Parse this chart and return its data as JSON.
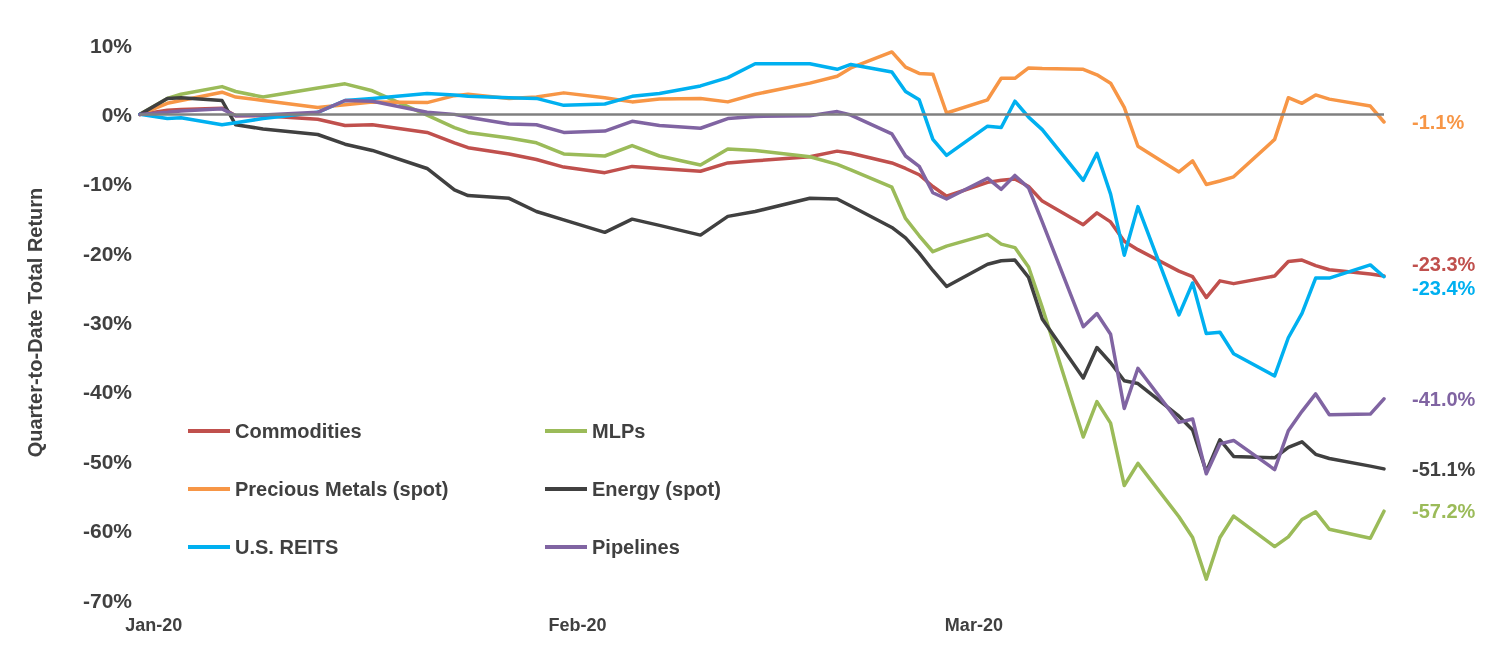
{
  "chart_data": {
    "type": "line",
    "ylabel": "Quarter-to-Date Total Return",
    "x": [
      "2019-12-31",
      "2020-01-02",
      "2020-01-03",
      "2020-01-06",
      "2020-01-07",
      "2020-01-09",
      "2020-01-13",
      "2020-01-15",
      "2020-01-17",
      "2020-01-21",
      "2020-01-23",
      "2020-01-24",
      "2020-01-27",
      "2020-01-29",
      "2020-01-31",
      "2020-02-03",
      "2020-02-05",
      "2020-02-07",
      "2020-02-10",
      "2020-02-12",
      "2020-02-14",
      "2020-02-18",
      "2020-02-20",
      "2020-02-21",
      "2020-02-24",
      "2020-02-25",
      "2020-02-26",
      "2020-02-27",
      "2020-02-28",
      "2020-03-02",
      "2020-03-03",
      "2020-03-04",
      "2020-03-05",
      "2020-03-06",
      "2020-03-09",
      "2020-03-10",
      "2020-03-11",
      "2020-03-12",
      "2020-03-13",
      "2020-03-16",
      "2020-03-17",
      "2020-03-18",
      "2020-03-19",
      "2020-03-20",
      "2020-03-23",
      "2020-03-24",
      "2020-03-25",
      "2020-03-26",
      "2020-03-27",
      "2020-03-30",
      "2020-03-31"
    ],
    "series": [
      {
        "name": "Commodities",
        "color": "#c0504d",
        "values": [
          0,
          0.6,
          0.7,
          0.9,
          -0.2,
          -0.2,
          -0.7,
          -1.6,
          -1.5,
          -2.6,
          -4.1,
          -4.8,
          -5.7,
          -6.5,
          -7.6,
          -8.4,
          -7.5,
          -7.8,
          -8.2,
          -7.0,
          -6.7,
          -6.1,
          -5.3,
          -5.6,
          -7.0,
          -7.8,
          -8.7,
          -10.4,
          -11.8,
          -9.8,
          -9.5,
          -9.3,
          -10.4,
          -12.5,
          -15.9,
          -14.2,
          -15.5,
          -18.3,
          -19.5,
          -22.6,
          -23.4,
          -26.4,
          -24.0,
          -24.4,
          -23.3,
          -21.2,
          -21.0,
          -21.8,
          -22.4,
          -23.0,
          -23.3
        ],
        "value_labels": [
          null,
          null,
          null,
          null,
          null,
          null,
          null,
          null,
          null,
          null,
          null,
          null,
          null,
          null,
          null,
          null,
          null,
          null,
          null,
          null,
          null,
          null,
          null,
          null,
          null,
          null,
          null,
          null,
          null,
          null,
          null,
          null,
          null,
          null,
          null,
          null,
          null,
          null,
          null,
          null,
          null,
          null,
          null,
          null,
          null,
          null,
          null,
          null,
          null,
          null,
          "-23.3%"
        ]
      },
      {
        "name": "MLPs",
        "color": "#9bbb59",
        "values": [
          0,
          2.3,
          2.9,
          4.0,
          3.3,
          2.5,
          3.8,
          4.4,
          3.4,
          -0.1,
          -1.9,
          -2.6,
          -3.4,
          -4.1,
          -5.7,
          -6.0,
          -4.5,
          -6.0,
          -7.3,
          -5.0,
          -5.2,
          -6.1,
          -7.2,
          -8.0,
          -10.5,
          -15.0,
          -17.5,
          -19.8,
          -19.0,
          -17.3,
          -18.7,
          -19.2,
          -22.0,
          -27.8,
          -46.5,
          -41.4,
          -44.5,
          -53.5,
          -50.3,
          -58.0,
          -61.0,
          -67.0,
          -61.0,
          -57.9,
          -62.3,
          -60.9,
          -58.4,
          -57.3,
          -59.8,
          -61.1,
          -57.2
        ],
        "value_labels": [
          null,
          null,
          null,
          null,
          null,
          null,
          null,
          null,
          null,
          null,
          null,
          null,
          null,
          null,
          null,
          null,
          null,
          null,
          null,
          null,
          null,
          null,
          null,
          null,
          null,
          null,
          null,
          null,
          null,
          null,
          null,
          null,
          null,
          null,
          null,
          null,
          null,
          null,
          null,
          null,
          null,
          null,
          null,
          null,
          null,
          null,
          null,
          null,
          null,
          null,
          "-57.2%"
        ]
      },
      {
        "name": "Precious Metals (spot)",
        "color": "#f79646",
        "values": [
          0,
          1.6,
          2.0,
          3.2,
          2.5,
          2.0,
          1.0,
          1.4,
          1.8,
          1.7,
          2.7,
          2.9,
          2.3,
          2.5,
          3.1,
          2.4,
          1.8,
          2.2,
          2.3,
          1.8,
          2.9,
          4.5,
          5.5,
          6.7,
          9.0,
          6.8,
          5.9,
          5.8,
          0.2,
          2.1,
          5.2,
          5.2,
          6.7,
          6.6,
          6.5,
          5.7,
          4.5,
          1.0,
          -4.6,
          -8.3,
          -6.7,
          -10.1,
          -9.6,
          -9.0,
          -3.6,
          2.4,
          1.6,
          2.8,
          2.2,
          1.2,
          -1.1
        ],
        "value_labels": [
          null,
          null,
          null,
          null,
          null,
          null,
          null,
          null,
          null,
          null,
          null,
          null,
          null,
          null,
          null,
          null,
          null,
          null,
          null,
          null,
          null,
          null,
          null,
          null,
          null,
          null,
          null,
          null,
          null,
          null,
          null,
          null,
          null,
          null,
          null,
          null,
          null,
          null,
          null,
          null,
          null,
          null,
          null,
          null,
          null,
          null,
          null,
          null,
          null,
          null,
          "-1.1%"
        ]
      },
      {
        "name": "Energy (spot)",
        "color": "#404040",
        "values": [
          0,
          2.3,
          2.4,
          2.0,
          -1.5,
          -2.1,
          -2.9,
          -4.3,
          -5.2,
          -7.8,
          -10.9,
          -11.7,
          -12.1,
          -14.0,
          -15.2,
          -17.0,
          -15.1,
          -16.0,
          -17.4,
          -14.7,
          -14.0,
          -12.1,
          -12.2,
          -13.2,
          -16.3,
          -17.8,
          -20.0,
          -22.5,
          -24.8,
          -21.6,
          -21.1,
          -21.0,
          -23.5,
          -29.5,
          -38.0,
          -33.6,
          -35.8,
          -38.4,
          -38.8,
          -43.5,
          -45.5,
          -51.5,
          -46.9,
          -49.3,
          -49.5,
          -48.0,
          -47.2,
          -49.0,
          -49.6,
          -50.7,
          -51.1
        ],
        "value_labels": [
          null,
          null,
          null,
          null,
          null,
          null,
          null,
          null,
          null,
          null,
          null,
          null,
          null,
          null,
          null,
          null,
          null,
          null,
          null,
          null,
          null,
          null,
          null,
          null,
          null,
          null,
          null,
          null,
          null,
          null,
          null,
          null,
          null,
          null,
          null,
          null,
          null,
          null,
          null,
          null,
          null,
          null,
          null,
          null,
          null,
          null,
          null,
          null,
          null,
          null,
          "-51.1%"
        ]
      },
      {
        "name": "U.S. REITS",
        "color": "#00b0f0",
        "values": [
          0,
          -0.6,
          -0.5,
          -1.5,
          -1.2,
          -0.6,
          0.3,
          2.0,
          2.3,
          3.0,
          2.8,
          2.6,
          2.4,
          2.3,
          1.3,
          1.5,
          2.6,
          3.0,
          4.1,
          5.3,
          7.3,
          7.3,
          6.5,
          7.2,
          6.1,
          3.3,
          2.1,
          -3.6,
          -5.9,
          -1.7,
          -1.9,
          1.9,
          -0.4,
          -2.2,
          -9.5,
          -5.6,
          -11.5,
          -20.3,
          -13.3,
          -28.9,
          -24.3,
          -31.6,
          -31.4,
          -34.5,
          -37.7,
          -32.2,
          -28.7,
          -23.6,
          -23.6,
          -21.7,
          -23.4
        ],
        "value_labels": [
          null,
          null,
          null,
          null,
          null,
          null,
          null,
          null,
          null,
          null,
          null,
          null,
          null,
          null,
          null,
          null,
          null,
          null,
          null,
          null,
          null,
          null,
          null,
          null,
          null,
          null,
          null,
          null,
          null,
          null,
          null,
          null,
          null,
          null,
          null,
          null,
          null,
          null,
          null,
          null,
          null,
          null,
          null,
          null,
          null,
          null,
          null,
          null,
          null,
          null,
          "-23.4%"
        ]
      },
      {
        "name": "Pipelines",
        "color": "#8064a2",
        "values": [
          0,
          0.3,
          0.5,
          0.8,
          -0.2,
          -0.1,
          0.3,
          2.0,
          1.9,
          0.3,
          0.0,
          -0.4,
          -1.4,
          -1.5,
          -2.6,
          -2.4,
          -1.0,
          -1.6,
          -2.0,
          -0.6,
          -0.3,
          -0.2,
          0.4,
          -0.1,
          -2.8,
          -6.0,
          -7.5,
          -11.3,
          -12.2,
          -9.2,
          -10.8,
          -8.8,
          -10.6,
          -15.5,
          -30.6,
          -28.7,
          -31.7,
          -42.4,
          -36.6,
          -44.4,
          -43.9,
          -51.8,
          -47.5,
          -47.0,
          -51.2,
          -45.6,
          -42.8,
          -40.3,
          -43.3,
          -43.2,
          -41.0
        ],
        "value_labels": [
          null,
          null,
          null,
          null,
          null,
          null,
          null,
          null,
          null,
          null,
          null,
          null,
          null,
          null,
          null,
          null,
          null,
          null,
          null,
          null,
          null,
          null,
          null,
          null,
          null,
          null,
          null,
          null,
          null,
          null,
          null,
          null,
          null,
          null,
          null,
          null,
          null,
          null,
          null,
          null,
          null,
          null,
          null,
          null,
          null,
          null,
          null,
          null,
          null,
          null,
          "-41.0%"
        ]
      }
    ],
    "xlim": [
      "2019-12-31",
      "2020-03-31"
    ],
    "xticks": [
      {
        "value": "2020-01-01",
        "label": "Jan-20"
      },
      {
        "value": "2020-02-01",
        "label": "Feb-20"
      },
      {
        "value": "2020-03-01",
        "label": "Mar-20"
      }
    ],
    "ylim": [
      -70,
      10
    ],
    "yticks": [
      {
        "value": 10,
        "label": "10%"
      },
      {
        "value": 0,
        "label": "0%"
      },
      {
        "value": -10,
        "label": "-10%"
      },
      {
        "value": -20,
        "label": "-20%"
      },
      {
        "value": -30,
        "label": "-30%"
      },
      {
        "value": -40,
        "label": "-40%"
      },
      {
        "value": -50,
        "label": "-50%"
      },
      {
        "value": -60,
        "label": "-60%"
      },
      {
        "value": -70,
        "label": "-70%"
      }
    ],
    "ref_lines": [
      {
        "axis": "y",
        "value": 0,
        "color": "#808080"
      }
    ],
    "legend": "bottom left",
    "grid": false,
    "marker": "none",
    "line_style": "solid"
  }
}
